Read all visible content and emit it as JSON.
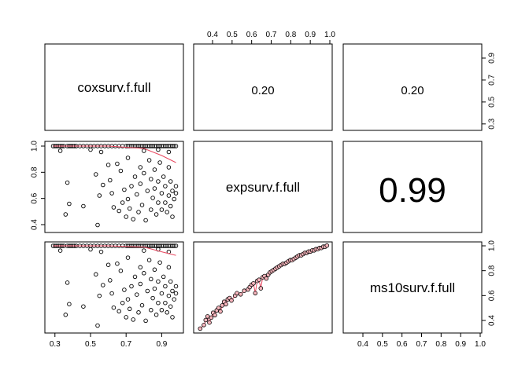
{
  "chart_data": {
    "type": "scatter",
    "kind": "pairs-matrix",
    "variables": [
      "coxsurv.f.full",
      "expsurv.f.full",
      "ms10surv.f.full"
    ],
    "correlations": [
      {
        "row": 0,
        "col": 1,
        "label": "0.20"
      },
      {
        "row": 0,
        "col": 2,
        "label": "0.20"
      },
      {
        "row": 1,
        "col": 2,
        "label": "0.99"
      }
    ],
    "axes": {
      "cox": {
        "range": [
          0.27,
          1.0
        ],
        "ticks": [
          0.3,
          0.5,
          0.7,
          0.9
        ],
        "tick_labels": [
          "0.3",
          "0.5",
          "0.7",
          "0.9"
        ]
      },
      "exp": {
        "range": [
          0.3,
          1.0
        ],
        "ticks": [
          0.4,
          0.6,
          0.8,
          1.0
        ],
        "tick_labels": [
          "0.4",
          "0.6",
          "0.8",
          "1.0"
        ]
      },
      "ms10": {
        "range": [
          0.32,
          1.02
        ],
        "ticks": [
          0.4,
          0.5,
          0.6,
          0.7,
          0.8,
          0.9,
          1.0
        ],
        "tick_labels": [
          "0.4",
          "0.5",
          "0.6",
          "0.7",
          "0.8",
          "0.9",
          "1.0"
        ]
      },
      "right_col": {
        "range": [
          0.27,
          1.0
        ],
        "ticks": [
          0.3,
          0.5,
          0.7,
          0.9
        ],
        "tick_labels": [
          "0.3",
          "0.5",
          "0.7",
          "0.9"
        ]
      }
    },
    "colors": {
      "smooth": "#e8475f",
      "point_fill": "#f7b6bd",
      "point_stroke": "#000000"
    },
    "cox_exp_points": [
      [
        0.29,
        1.0
      ],
      [
        0.3,
        1.0
      ],
      [
        0.31,
        1.0
      ],
      [
        0.32,
        1.0
      ],
      [
        0.33,
        1.0
      ],
      [
        0.34,
        1.0
      ],
      [
        0.35,
        1.0
      ],
      [
        0.37,
        1.0
      ],
      [
        0.38,
        1.0
      ],
      [
        0.39,
        1.0
      ],
      [
        0.4,
        1.0
      ],
      [
        0.41,
        1.0
      ],
      [
        0.42,
        1.0
      ],
      [
        0.44,
        1.0
      ],
      [
        0.46,
        1.0
      ],
      [
        0.48,
        1.0
      ],
      [
        0.5,
        1.0
      ],
      [
        0.52,
        1.0
      ],
      [
        0.54,
        1.0
      ],
      [
        0.56,
        1.0
      ],
      [
        0.58,
        1.0
      ],
      [
        0.6,
        1.0
      ],
      [
        0.62,
        1.0
      ],
      [
        0.64,
        1.0
      ],
      [
        0.66,
        1.0
      ],
      [
        0.68,
        1.0
      ],
      [
        0.7,
        1.0
      ],
      [
        0.71,
        1.0
      ],
      [
        0.72,
        1.0
      ],
      [
        0.73,
        1.0
      ],
      [
        0.74,
        1.0
      ],
      [
        0.75,
        1.0
      ],
      [
        0.76,
        1.0
      ],
      [
        0.77,
        1.0
      ],
      [
        0.78,
        1.0
      ],
      [
        0.79,
        1.0
      ],
      [
        0.8,
        1.0
      ],
      [
        0.81,
        1.0
      ],
      [
        0.82,
        1.0
      ],
      [
        0.83,
        1.0
      ],
      [
        0.84,
        1.0
      ],
      [
        0.85,
        1.0
      ],
      [
        0.86,
        1.0
      ],
      [
        0.87,
        1.0
      ],
      [
        0.88,
        1.0
      ],
      [
        0.89,
        1.0
      ],
      [
        0.9,
        1.0
      ],
      [
        0.91,
        1.0
      ],
      [
        0.92,
        1.0
      ],
      [
        0.93,
        1.0
      ],
      [
        0.94,
        1.0
      ],
      [
        0.95,
        1.0
      ],
      [
        0.96,
        1.0
      ],
      [
        0.97,
        1.0
      ],
      [
        0.98,
        1.0
      ],
      [
        0.33,
        0.96
      ],
      [
        0.5,
        0.97
      ],
      [
        0.56,
        0.95
      ],
      [
        0.8,
        0.96
      ],
      [
        0.88,
        0.97
      ],
      [
        0.94,
        0.95
      ],
      [
        0.37,
        0.69
      ],
      [
        0.38,
        0.51
      ],
      [
        0.36,
        0.42
      ],
      [
        0.46,
        0.49
      ],
      [
        0.53,
        0.76
      ],
      [
        0.54,
        0.33
      ],
      [
        0.55,
        0.58
      ],
      [
        0.57,
        0.67
      ],
      [
        0.6,
        0.84
      ],
      [
        0.61,
        0.71
      ],
      [
        0.62,
        0.6
      ],
      [
        0.63,
        0.48
      ],
      [
        0.65,
        0.85
      ],
      [
        0.66,
        0.45
      ],
      [
        0.67,
        0.79
      ],
      [
        0.68,
        0.52
      ],
      [
        0.69,
        0.63
      ],
      [
        0.7,
        0.4
      ],
      [
        0.71,
        0.9
      ],
      [
        0.71,
        0.55
      ],
      [
        0.72,
        0.47
      ],
      [
        0.73,
        0.66
      ],
      [
        0.74,
        0.38
      ],
      [
        0.75,
        0.74
      ],
      [
        0.76,
        0.59
      ],
      [
        0.77,
        0.44
      ],
      [
        0.78,
        0.82
      ],
      [
        0.78,
        0.68
      ],
      [
        0.79,
        0.5
      ],
      [
        0.8,
        0.77
      ],
      [
        0.81,
        0.37
      ],
      [
        0.82,
        0.62
      ],
      [
        0.83,
        0.88
      ],
      [
        0.84,
        0.72
      ],
      [
        0.84,
        0.46
      ],
      [
        0.85,
        0.56
      ],
      [
        0.86,
        0.8
      ],
      [
        0.86,
        0.64
      ],
      [
        0.87,
        0.42
      ],
      [
        0.88,
        0.52
      ],
      [
        0.88,
        0.7
      ],
      [
        0.89,
        0.86
      ],
      [
        0.9,
        0.6
      ],
      [
        0.9,
        0.46
      ],
      [
        0.91,
        0.74
      ],
      [
        0.92,
        0.52
      ],
      [
        0.92,
        0.66
      ],
      [
        0.93,
        0.44
      ],
      [
        0.94,
        0.82
      ],
      [
        0.94,
        0.58
      ],
      [
        0.95,
        0.49
      ],
      [
        0.95,
        0.7
      ],
      [
        0.96,
        0.62
      ],
      [
        0.96,
        0.4
      ],
      [
        0.97,
        0.55
      ],
      [
        0.98,
        0.66
      ],
      [
        0.98,
        0.6
      ]
    ],
    "cox_exp_smooth": [
      [
        0.29,
        1.0
      ],
      [
        0.6,
        1.0
      ],
      [
        0.8,
        0.98
      ],
      [
        0.9,
        0.92
      ],
      [
        0.98,
        0.86
      ]
    ],
    "cox_ms10_smooth": [
      [
        0.29,
        1.0
      ],
      [
        0.6,
        1.0
      ],
      [
        0.8,
        0.99
      ],
      [
        0.9,
        0.95
      ],
      [
        0.98,
        0.92
      ]
    ],
    "exp_ms10_points": [
      [
        0.31,
        0.33
      ],
      [
        0.33,
        0.36
      ],
      [
        0.34,
        0.4
      ],
      [
        0.35,
        0.43
      ],
      [
        0.36,
        0.38
      ],
      [
        0.37,
        0.42
      ],
      [
        0.38,
        0.46
      ],
      [
        0.39,
        0.44
      ],
      [
        0.4,
        0.48
      ],
      [
        0.41,
        0.5
      ],
      [
        0.42,
        0.47
      ],
      [
        0.43,
        0.52
      ],
      [
        0.44,
        0.55
      ],
      [
        0.45,
        0.53
      ],
      [
        0.46,
        0.57
      ],
      [
        0.47,
        0.58
      ],
      [
        0.48,
        0.56
      ],
      [
        0.5,
        0.6
      ],
      [
        0.51,
        0.62
      ],
      [
        0.53,
        0.61
      ],
      [
        0.55,
        0.64
      ],
      [
        0.57,
        0.65
      ],
      [
        0.58,
        0.67
      ],
      [
        0.59,
        0.69
      ],
      [
        0.6,
        0.7
      ],
      [
        0.61,
        0.62
      ],
      [
        0.62,
        0.72
      ],
      [
        0.63,
        0.73
      ],
      [
        0.64,
        0.66
      ],
      [
        0.65,
        0.75
      ],
      [
        0.66,
        0.76
      ],
      [
        0.67,
        0.74
      ],
      [
        0.68,
        0.77
      ],
      [
        0.69,
        0.79
      ],
      [
        0.7,
        0.8
      ],
      [
        0.71,
        0.81
      ],
      [
        0.72,
        0.82
      ],
      [
        0.73,
        0.83
      ],
      [
        0.74,
        0.84
      ],
      [
        0.75,
        0.85
      ],
      [
        0.76,
        0.86
      ],
      [
        0.77,
        0.86
      ],
      [
        0.78,
        0.87
      ],
      [
        0.79,
        0.88
      ],
      [
        0.8,
        0.89
      ],
      [
        0.81,
        0.89
      ],
      [
        0.82,
        0.9
      ],
      [
        0.83,
        0.91
      ],
      [
        0.84,
        0.92
      ],
      [
        0.85,
        0.93
      ],
      [
        0.86,
        0.93
      ],
      [
        0.87,
        0.94
      ],
      [
        0.88,
        0.95
      ],
      [
        0.89,
        0.95
      ],
      [
        0.9,
        0.96
      ],
      [
        0.91,
        0.96
      ],
      [
        0.92,
        0.97
      ],
      [
        0.93,
        0.97
      ],
      [
        0.94,
        0.98
      ],
      [
        0.95,
        0.98
      ],
      [
        0.96,
        0.99
      ],
      [
        0.97,
        0.99
      ],
      [
        0.98,
        1.0
      ],
      [
        0.99,
        1.0
      ],
      [
        1.0,
        1.01
      ]
    ]
  }
}
